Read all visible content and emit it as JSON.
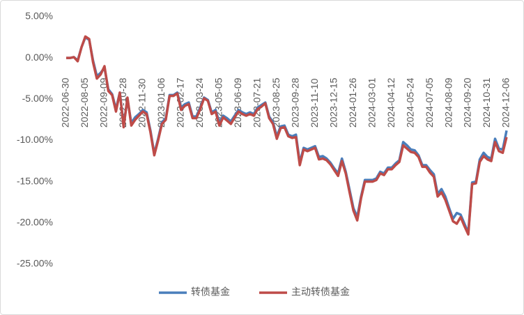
{
  "chart_data": {
    "type": "line",
    "categories": [
      "2022-06-30",
      null,
      null,
      null,
      null,
      "2022-08-05",
      null,
      null,
      null,
      null,
      "2022-09-09",
      null,
      null,
      null,
      null,
      "2022-10-28",
      null,
      null,
      null,
      null,
      "2022-11-30",
      null,
      null,
      null,
      null,
      "2023-01-06",
      null,
      null,
      null,
      null,
      "2023-02-17",
      null,
      null,
      null,
      null,
      "2023-03-24",
      null,
      null,
      null,
      null,
      "2023-05-05",
      null,
      null,
      null,
      null,
      "2023-06-09",
      null,
      null,
      null,
      null,
      "2023-07-21",
      null,
      null,
      null,
      null,
      "2023-08-25",
      null,
      null,
      null,
      null,
      "2023-09-28",
      null,
      null,
      null,
      null,
      "2023-11-10",
      null,
      null,
      null,
      null,
      "2023-12-15",
      null,
      null,
      null,
      null,
      "2024-01-26",
      null,
      null,
      null,
      null,
      "2024-03-01",
      null,
      null,
      null,
      null,
      "2024-04-12",
      null,
      null,
      null,
      null,
      "2024-05-24",
      null,
      null,
      null,
      null,
      "2024-07-05",
      null,
      null,
      null,
      null,
      "2024-08-09",
      null,
      null,
      null,
      null,
      "2024-09-20",
      null,
      null,
      null,
      null,
      "2024-10-31",
      null,
      null,
      null,
      null,
      "2024-12-06"
    ],
    "series": [
      {
        "name": "转债基金",
        "color": "#4a7ebb",
        "values": [
          0,
          0,
          0.1,
          -0.3,
          1.3,
          2.5,
          2.2,
          -0.3,
          -2.2,
          -1.8,
          -1.2,
          -3.8,
          -4.4,
          -6.2,
          -4.2,
          -8.1,
          -5,
          -7.9,
          -7.2,
          -6.8,
          -6.3,
          -6.6,
          -8.8,
          -11.6,
          -9.8,
          -7.8,
          -7.3,
          -4.5,
          -4.5,
          -4.2,
          -6,
          -5.6,
          -5.4,
          -7.1,
          -7.1,
          -6,
          -4.8,
          -5.1,
          -6.6,
          -6.3,
          -7.8,
          -7,
          -7.3,
          -7.7,
          -7,
          -6.3,
          -6.6,
          -6.8,
          -6.6,
          -6.8,
          -6,
          -5.7,
          -5.4,
          -7.1,
          -7.8,
          -9.5,
          -8.3,
          -8.2,
          -9.3,
          -9.5,
          -9.3,
          -12.7,
          -10.9,
          -11.1,
          -10.9,
          -10.7,
          -12,
          -11.9,
          -12.2,
          -12.7,
          -13.4,
          -14,
          -12.2,
          -13.8,
          -16,
          -18.2,
          -19.3,
          -16.8,
          -14.8,
          -14.8,
          -14.8,
          -14.6,
          -13.8,
          -14,
          -13.3,
          -13.3,
          -12.8,
          -12.4,
          -10.2,
          -10.6,
          -11.1,
          -11.2,
          -11.8,
          -13,
          -13,
          -13.6,
          -14.1,
          -16.5,
          -15.9,
          -16.8,
          -18.2,
          -19.5,
          -18.8,
          -19,
          -20.1,
          -21.2,
          -15.1,
          -15,
          -12.3,
          -11.5,
          -12,
          -12.2,
          -9.8,
          -11,
          -11.1,
          -8.8
        ]
      },
      {
        "name": "主动转债基金",
        "color": "#be4b48",
        "values": [
          0,
          0,
          0.1,
          -0.4,
          1.3,
          2.6,
          2.3,
          -0.5,
          -2.5,
          -2,
          -1,
          -4,
          -4.5,
          -6.5,
          -4.2,
          -8.4,
          -4.8,
          -8.2,
          -7.5,
          -7,
          -6.5,
          -6.8,
          -9,
          -11.8,
          -10,
          -8,
          -7.5,
          -4.6,
          -4.6,
          -4.3,
          -6.3,
          -5.8,
          -5.6,
          -7.3,
          -7.3,
          -6.2,
          -4.9,
          -5.2,
          -6.8,
          -6.5,
          -8.2,
          -7.2,
          -7.6,
          -8,
          -7.2,
          -6.5,
          -6.8,
          -7,
          -6.8,
          -7,
          -6.2,
          -5.9,
          -5.5,
          -7.3,
          -8,
          -9.8,
          -8.5,
          -8.4,
          -9.5,
          -9.7,
          -9.6,
          -13,
          -11.1,
          -11.3,
          -11.1,
          -10.9,
          -12.3,
          -12.2,
          -12.4,
          -12.9,
          -13.6,
          -14.3,
          -12.5,
          -14,
          -16.3,
          -18.5,
          -19.7,
          -17,
          -15,
          -15,
          -15,
          -14.8,
          -14,
          -14.2,
          -13.5,
          -13.5,
          -13,
          -12.6,
          -10.6,
          -11,
          -11.4,
          -11.5,
          -12,
          -13.2,
          -13.2,
          -13.9,
          -14.4,
          -16.8,
          -16.3,
          -17.2,
          -18.5,
          -19.8,
          -20.1,
          -19.3,
          -20.4,
          -21.4,
          -15.3,
          -15.2,
          -12.6,
          -11.9,
          -12.3,
          -12.5,
          -10.2,
          -11.3,
          -11.5,
          -9.6
        ]
      }
    ],
    "ylim": [
      -25,
      5
    ],
    "yticks": [
      {
        "value": 5,
        "label": "5.00%"
      },
      {
        "value": 0,
        "label": "0.00%"
      },
      {
        "value": -5,
        "label": "-5.00%"
      },
      {
        "value": -10,
        "label": "-10.00%"
      },
      {
        "value": -15,
        "label": "-15.00%"
      },
      {
        "value": -20,
        "label": "-20.00%"
      },
      {
        "value": -25,
        "label": "-25.00%"
      }
    ],
    "legend": "bottom"
  }
}
